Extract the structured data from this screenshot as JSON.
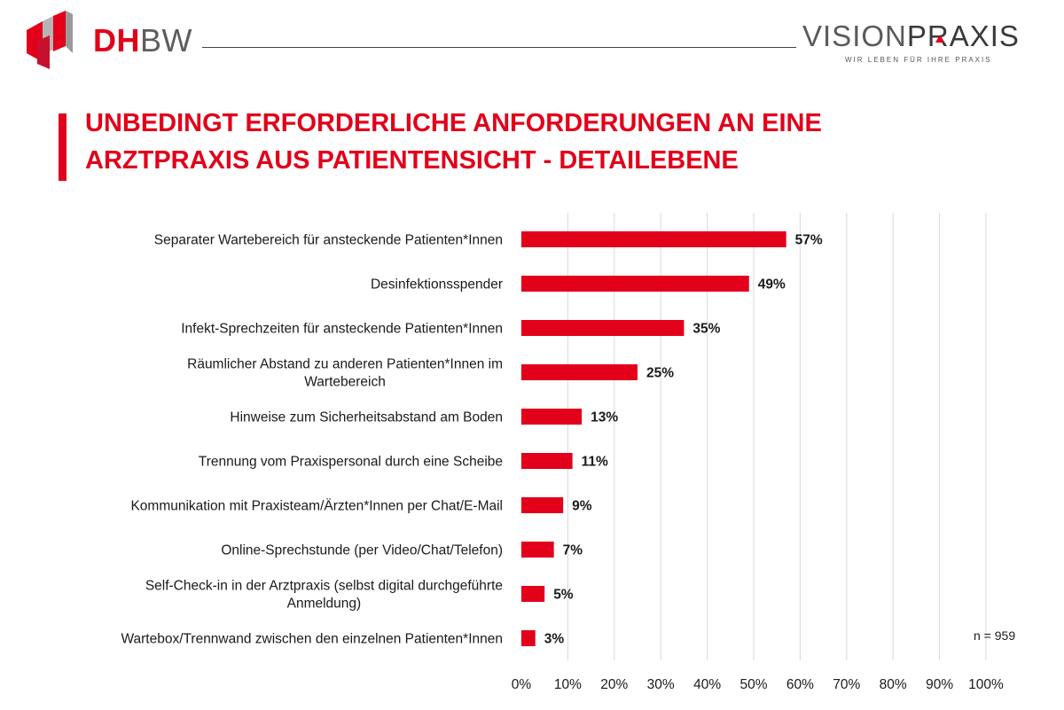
{
  "header": {
    "left_logo_text_a": "DH",
    "left_logo_text_b": "BW",
    "right_logo_text_a": "VISION",
    "right_logo_text_b": "PRAXIS",
    "right_logo_tagline": "WIR LEBEN FÜR IHRE PRAXIS"
  },
  "title_lines": [
    "UNBEDINGT ERFORDERLICHE ANFORDERUNGEN AN EINE",
    "ARZTPRAXIS AUS PATIENTENSICHT - DETAILEBENE"
  ],
  "colors": {
    "accent": "#e2001a",
    "bar": "#e2001a",
    "grid": "#d9d9d9",
    "text": "#1a1a1a"
  },
  "footnote": "n = 959",
  "chart_data": {
    "type": "bar",
    "orientation": "horizontal",
    "categories": [
      [
        "Separater Wartebereich für ansteckende Patienten*Innen"
      ],
      [
        "Desinfektionsspender"
      ],
      [
        "Infekt-Sprechzeiten für ansteckende Patienten*Innen"
      ],
      [
        "Räumlicher Abstand zu anderen Patienten*Innen im",
        "Wartebereich"
      ],
      [
        "Hinweise zum Sicherheitsabstand am Boden"
      ],
      [
        "Trennung vom Praxispersonal durch eine Scheibe"
      ],
      [
        "Kommunikation mit Praxisteam/Ärzten*Innen per Chat/E-Mail"
      ],
      [
        "Online-Sprechstunde (per Video/Chat/Telefon)"
      ],
      [
        "Self-Check-in in der Arztpraxis (selbst digital durchgeführte",
        "Anmeldung)"
      ],
      [
        "Wartebox/Trennwand zwischen den einzelnen Patienten*Innen"
      ]
    ],
    "values": [
      57,
      49,
      35,
      25,
      13,
      11,
      9,
      7,
      5,
      3
    ],
    "value_labels": [
      "57%",
      "49%",
      "35%",
      "25%",
      "13%",
      "11%",
      "9%",
      "7%",
      "5%",
      "3%"
    ],
    "x_ticks": [
      "0%",
      "10%",
      "20%",
      "30%",
      "40%",
      "50%",
      "60%",
      "70%",
      "80%",
      "90%",
      "100%"
    ],
    "xlim": [
      0,
      100
    ],
    "grid": true,
    "legend": "none"
  }
}
